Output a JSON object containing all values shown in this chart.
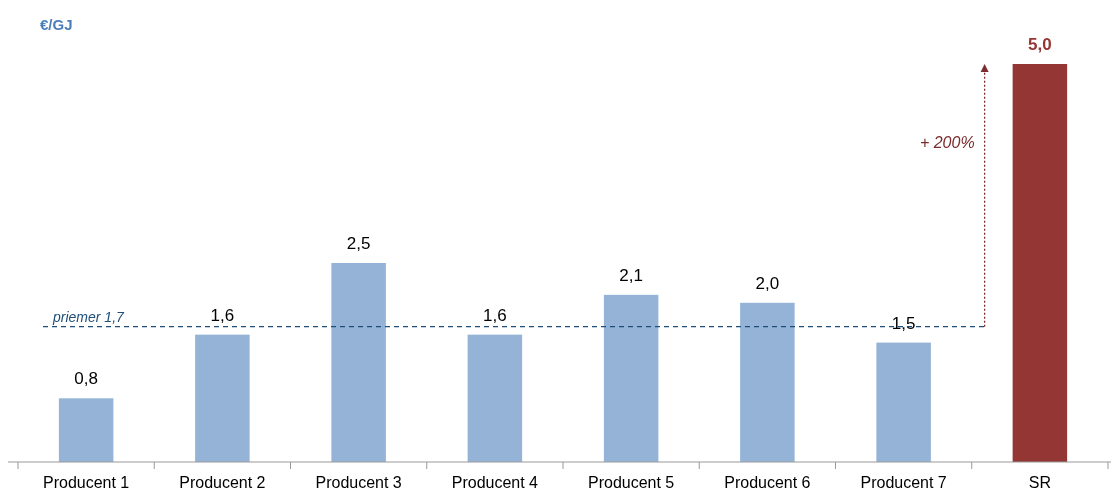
{
  "chart_data": {
    "type": "bar",
    "ylabel": "€/GJ",
    "categories": [
      "Producent 1",
      "Producent 2",
      "Producent 3",
      "Producent 4",
      "Producent 5",
      "Producent 6",
      "Producent 7",
      "SR"
    ],
    "values": [
      0.8,
      1.6,
      2.5,
      1.6,
      2.1,
      2.0,
      1.5,
      5.0
    ],
    "colors": [
      "#95b3d7",
      "#95b3d7",
      "#95b3d7",
      "#95b3d7",
      "#95b3d7",
      "#95b3d7",
      "#95b3d7",
      "#943634"
    ],
    "value_labels": [
      "0,8",
      "1,6",
      "2,5",
      "1,6",
      "2,1",
      "2,0",
      "1,5",
      "5,0"
    ],
    "ref_lines": [
      {
        "axis": "y",
        "value": 1.7,
        "label": "priemer 1,7",
        "color": "#1f4e79",
        "line_style": "dashed"
      }
    ],
    "annotations": [
      "+ 200%"
    ]
  }
}
